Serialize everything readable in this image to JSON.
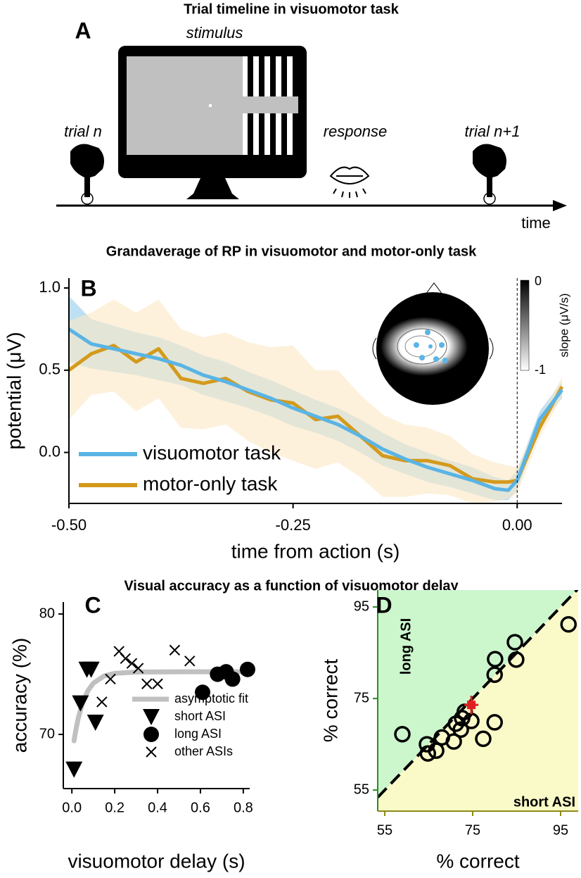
{
  "timeline": {
    "title": "Trial timeline in visuomotor task",
    "panel": "A",
    "stimulus": "stimulus",
    "trial_start": "trial n",
    "response": "response",
    "trial_next": "trial n+1",
    "axis_label": "time"
  },
  "chart_data": [
    {
      "type": "line",
      "panel": "B",
      "title": "Grandaverage of RP in visuomotor and motor-only task",
      "x": [
        -0.5,
        -0.475,
        -0.45,
        -0.425,
        -0.4,
        -0.375,
        -0.35,
        -0.325,
        -0.3,
        -0.275,
        -0.25,
        -0.225,
        -0.2,
        -0.175,
        -0.15,
        -0.125,
        -0.1,
        -0.075,
        -0.05,
        -0.025,
        -0.01,
        0,
        0.025,
        0.05
      ],
      "xlim": [
        -0.5,
        0.05
      ],
      "xticks": [
        {
          "value": -0.5,
          "label": "-0.50"
        },
        {
          "value": -0.25,
          "label": "-0.25"
        },
        {
          "value": 0,
          "label": "0.00"
        }
      ],
      "ylim": [
        -0.31,
        1.06
      ],
      "yticks": [
        {
          "value": 0,
          "label": "0.0"
        },
        {
          "value": 0.5,
          "label": "0.5"
        },
        {
          "value": 1,
          "label": "1.0"
        }
      ],
      "xlabel": "time from action (s)",
      "ylabel": "potential (μV)",
      "vline": 0,
      "legend": "lower left",
      "series": [
        {
          "name": "visuomotor task",
          "color": "#5ab4e5",
          "band_color": "#a9d6ee",
          "values": [
            0.75,
            0.66,
            0.63,
            0.6,
            0.57,
            0.53,
            0.47,
            0.43,
            0.38,
            0.33,
            0.27,
            0.22,
            0.17,
            0.1,
            0.02,
            -0.04,
            -0.09,
            -0.13,
            -0.17,
            -0.22,
            -0.23,
            -0.17,
            0.2,
            0.38
          ],
          "error": [
            0.2,
            0.15,
            0.14,
            0.13,
            0.13,
            0.12,
            0.12,
            0.12,
            0.11,
            0.11,
            0.11,
            0.1,
            0.1,
            0.1,
            0.1,
            0.09,
            0.09,
            0.08,
            0.08,
            0.07,
            0.06,
            0.06,
            0.05,
            0.05
          ]
        },
        {
          "name": "motor-only task",
          "color": "#d49a1c",
          "band_color": "#fbe8c4",
          "values": [
            0.5,
            0.6,
            0.65,
            0.55,
            0.63,
            0.45,
            0.42,
            0.45,
            0.37,
            0.32,
            0.3,
            0.2,
            0.22,
            0.1,
            -0.02,
            -0.05,
            -0.05,
            -0.08,
            -0.16,
            -0.18,
            -0.18,
            -0.17,
            0.15,
            0.4
          ],
          "error": [
            0.3,
            0.25,
            0.28,
            0.3,
            0.3,
            0.3,
            0.28,
            0.28,
            0.3,
            0.32,
            0.35,
            0.3,
            0.28,
            0.25,
            0.25,
            0.22,
            0.2,
            0.18,
            0.15,
            0.12,
            0.1,
            0.08,
            0.06,
            0.06
          ]
        }
      ],
      "colorbar": {
        "label": "slope (μV/s)",
        "ticks": [
          0,
          -1
        ]
      }
    },
    {
      "type": "scatter",
      "panel": "C",
      "title": "Visual accuracy as a function of visuomotor delay",
      "xlim": [
        -0.04,
        0.83
      ],
      "xticks": [
        {
          "value": 0,
          "label": "0.0"
        },
        0.2,
        0.4,
        0.6,
        0.8
      ],
      "ylim": [
        65.5,
        81
      ],
      "yticks": [
        70,
        80
      ],
      "xlabel": "visuomotor delay (s)",
      "ylabel": "accuracy (%)",
      "legend": "lower right",
      "series": [
        {
          "name": "asymptotic fit",
          "marker": "line",
          "color": "#c0c0c0",
          "x": [
            0.01,
            0.02,
            0.03,
            0.05,
            0.075,
            0.1,
            0.15,
            0.2,
            0.3,
            0.5,
            0.82
          ],
          "values": [
            69.47,
            70.51,
            71.36,
            72.62,
            73.64,
            74.25,
            74.85,
            75.07,
            75.18,
            75.2,
            75.2
          ]
        },
        {
          "name": "short ASI",
          "marker": "triangle",
          "color": "#000000",
          "x": [
            0.01,
            0.04,
            0.07,
            0.09,
            0.11
          ],
          "values": [
            67.1,
            72.6,
            75.4,
            75.4,
            71.0
          ]
        },
        {
          "name": "long ASI",
          "marker": "circle",
          "color": "#000000",
          "x": [
            0.61,
            0.68,
            0.72,
            0.75,
            0.82
          ],
          "values": [
            73.5,
            75.0,
            75.2,
            74.6,
            75.4
          ]
        },
        {
          "name": "other ASIs",
          "marker": "cross",
          "color": "#000000",
          "x": [
            0.14,
            0.18,
            0.22,
            0.25,
            0.28,
            0.31,
            0.35,
            0.4,
            0.48,
            0.55
          ],
          "values": [
            72.7,
            74.6,
            76.9,
            76.3,
            75.9,
            75.5,
            74.2,
            74.2,
            77.0,
            76.1
          ]
        }
      ]
    },
    {
      "type": "scatter",
      "panel": "D",
      "xlim": [
        53.4,
        99
      ],
      "ylim": [
        50.4,
        98.7
      ],
      "xticks": [
        55,
        75,
        95
      ],
      "yticks": [
        55,
        75,
        95
      ],
      "xlabel": "% correct",
      "ylabel": "% correct",
      "x_axis_color": "#8a8a18",
      "y_axis_color": "#2a8a2a",
      "regions": {
        "above": "long ASI",
        "below": "short ASI",
        "above_color": "#ccf6cc",
        "below_color": "#fafac8"
      },
      "x": [
        59.0,
        64.6,
        64.8,
        66.7,
        68.0,
        71.2,
        70.7,
        72.3,
        72.6,
        73.2,
        74.7,
        77.4,
        80.0,
        80.0,
        80.1,
        84.6,
        84.9,
        96.8
      ],
      "values": [
        67.2,
        65.0,
        63.0,
        63.6,
        66.5,
        69.5,
        65.6,
        68.2,
        70.7,
        72.1,
        70.1,
        66.2,
        69.8,
        80.2,
        83.6,
        87.3,
        83.5,
        91.2
      ],
      "color": "#000000",
      "mean": {
        "x": 74.7,
        "y": 73.6,
        "xerr": 1.6,
        "yerr": 2.0,
        "color": "#e02020"
      }
    }
  ]
}
